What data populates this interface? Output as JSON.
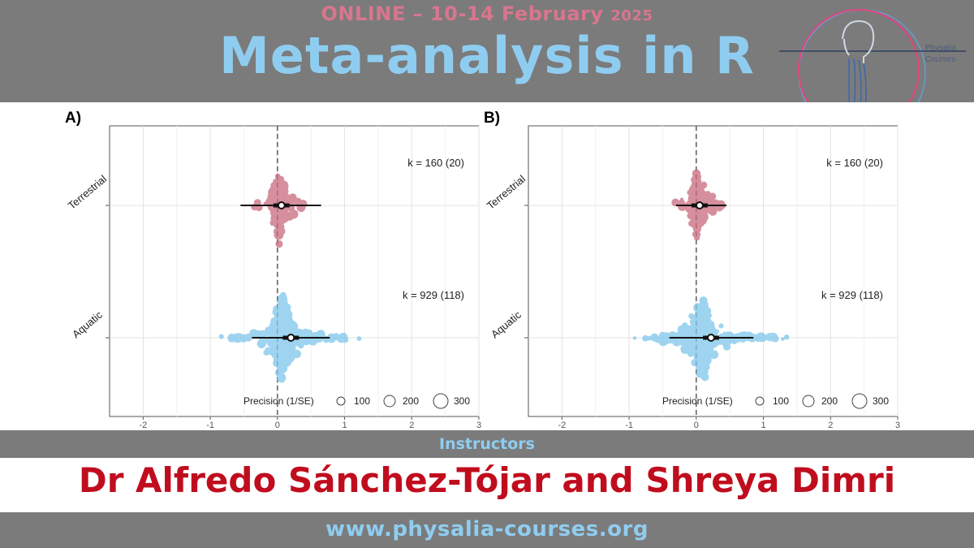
{
  "banner": {
    "date_line": "ONLINE – 10-14 February",
    "year": "2025",
    "title": "Meta-analysis in R",
    "instructors_label": "Instructors",
    "instructors_names": "Dr Alfredo Sánchez-Tójar and Shreya Dimri",
    "website": "www.physalia-courses.org"
  },
  "logo": {
    "text_line1": "Physalia",
    "text_line2": "Courses"
  },
  "colors": {
    "band_gray": "#7b7b7b",
    "pink": "#d8768d",
    "light_blue": "#8fcdf0",
    "red": "#c00d1e",
    "terrestrial_points": "#c86a7d",
    "aquatic_points": "#7ec6ec"
  },
  "figure": {
    "panels": [
      {
        "label": "A)",
        "k_terrestrial": "k = 160 (20)",
        "k_aquatic": "k = 929 (118)"
      },
      {
        "label": "B)",
        "k_terrestrial": "k = 160 (20)",
        "k_aquatic": "k = 929 (118)"
      }
    ],
    "y_labels": [
      "Terrestrial",
      "Aquatic"
    ],
    "x_ticks": [
      "-2",
      "-1",
      "0",
      "1",
      "2",
      "3"
    ],
    "precision_legend": {
      "title": "Precision (1/SE)",
      "values": [
        "100",
        "200",
        "300"
      ]
    }
  },
  "chart_data": [
    {
      "type": "scatter",
      "title": "A)",
      "xlim": [
        -2.5,
        3
      ],
      "categories": [
        "Terrestrial",
        "Aquatic"
      ],
      "series": [
        {
          "name": "Terrestrial",
          "estimate": 0.06,
          "ci": [
            -0.55,
            0.65
          ],
          "k": 160,
          "studies": 20
        },
        {
          "name": "Aquatic",
          "estimate": 0.2,
          "ci": [
            -0.38,
            0.78
          ],
          "k": 929,
          "studies": 118
        }
      ],
      "legend": "bottom-right",
      "grid": true
    },
    {
      "type": "scatter",
      "title": "B)",
      "xlim": [
        -2.5,
        3
      ],
      "categories": [
        "Terrestrial",
        "Aquatic"
      ],
      "series": [
        {
          "name": "Terrestrial",
          "estimate": 0.05,
          "ci": [
            -0.3,
            0.45
          ],
          "k": 160,
          "studies": 20
        },
        {
          "name": "Aquatic",
          "estimate": 0.22,
          "ci": [
            -0.4,
            0.85
          ],
          "k": 929,
          "studies": 118
        }
      ],
      "legend": "bottom-right",
      "grid": true
    }
  ]
}
